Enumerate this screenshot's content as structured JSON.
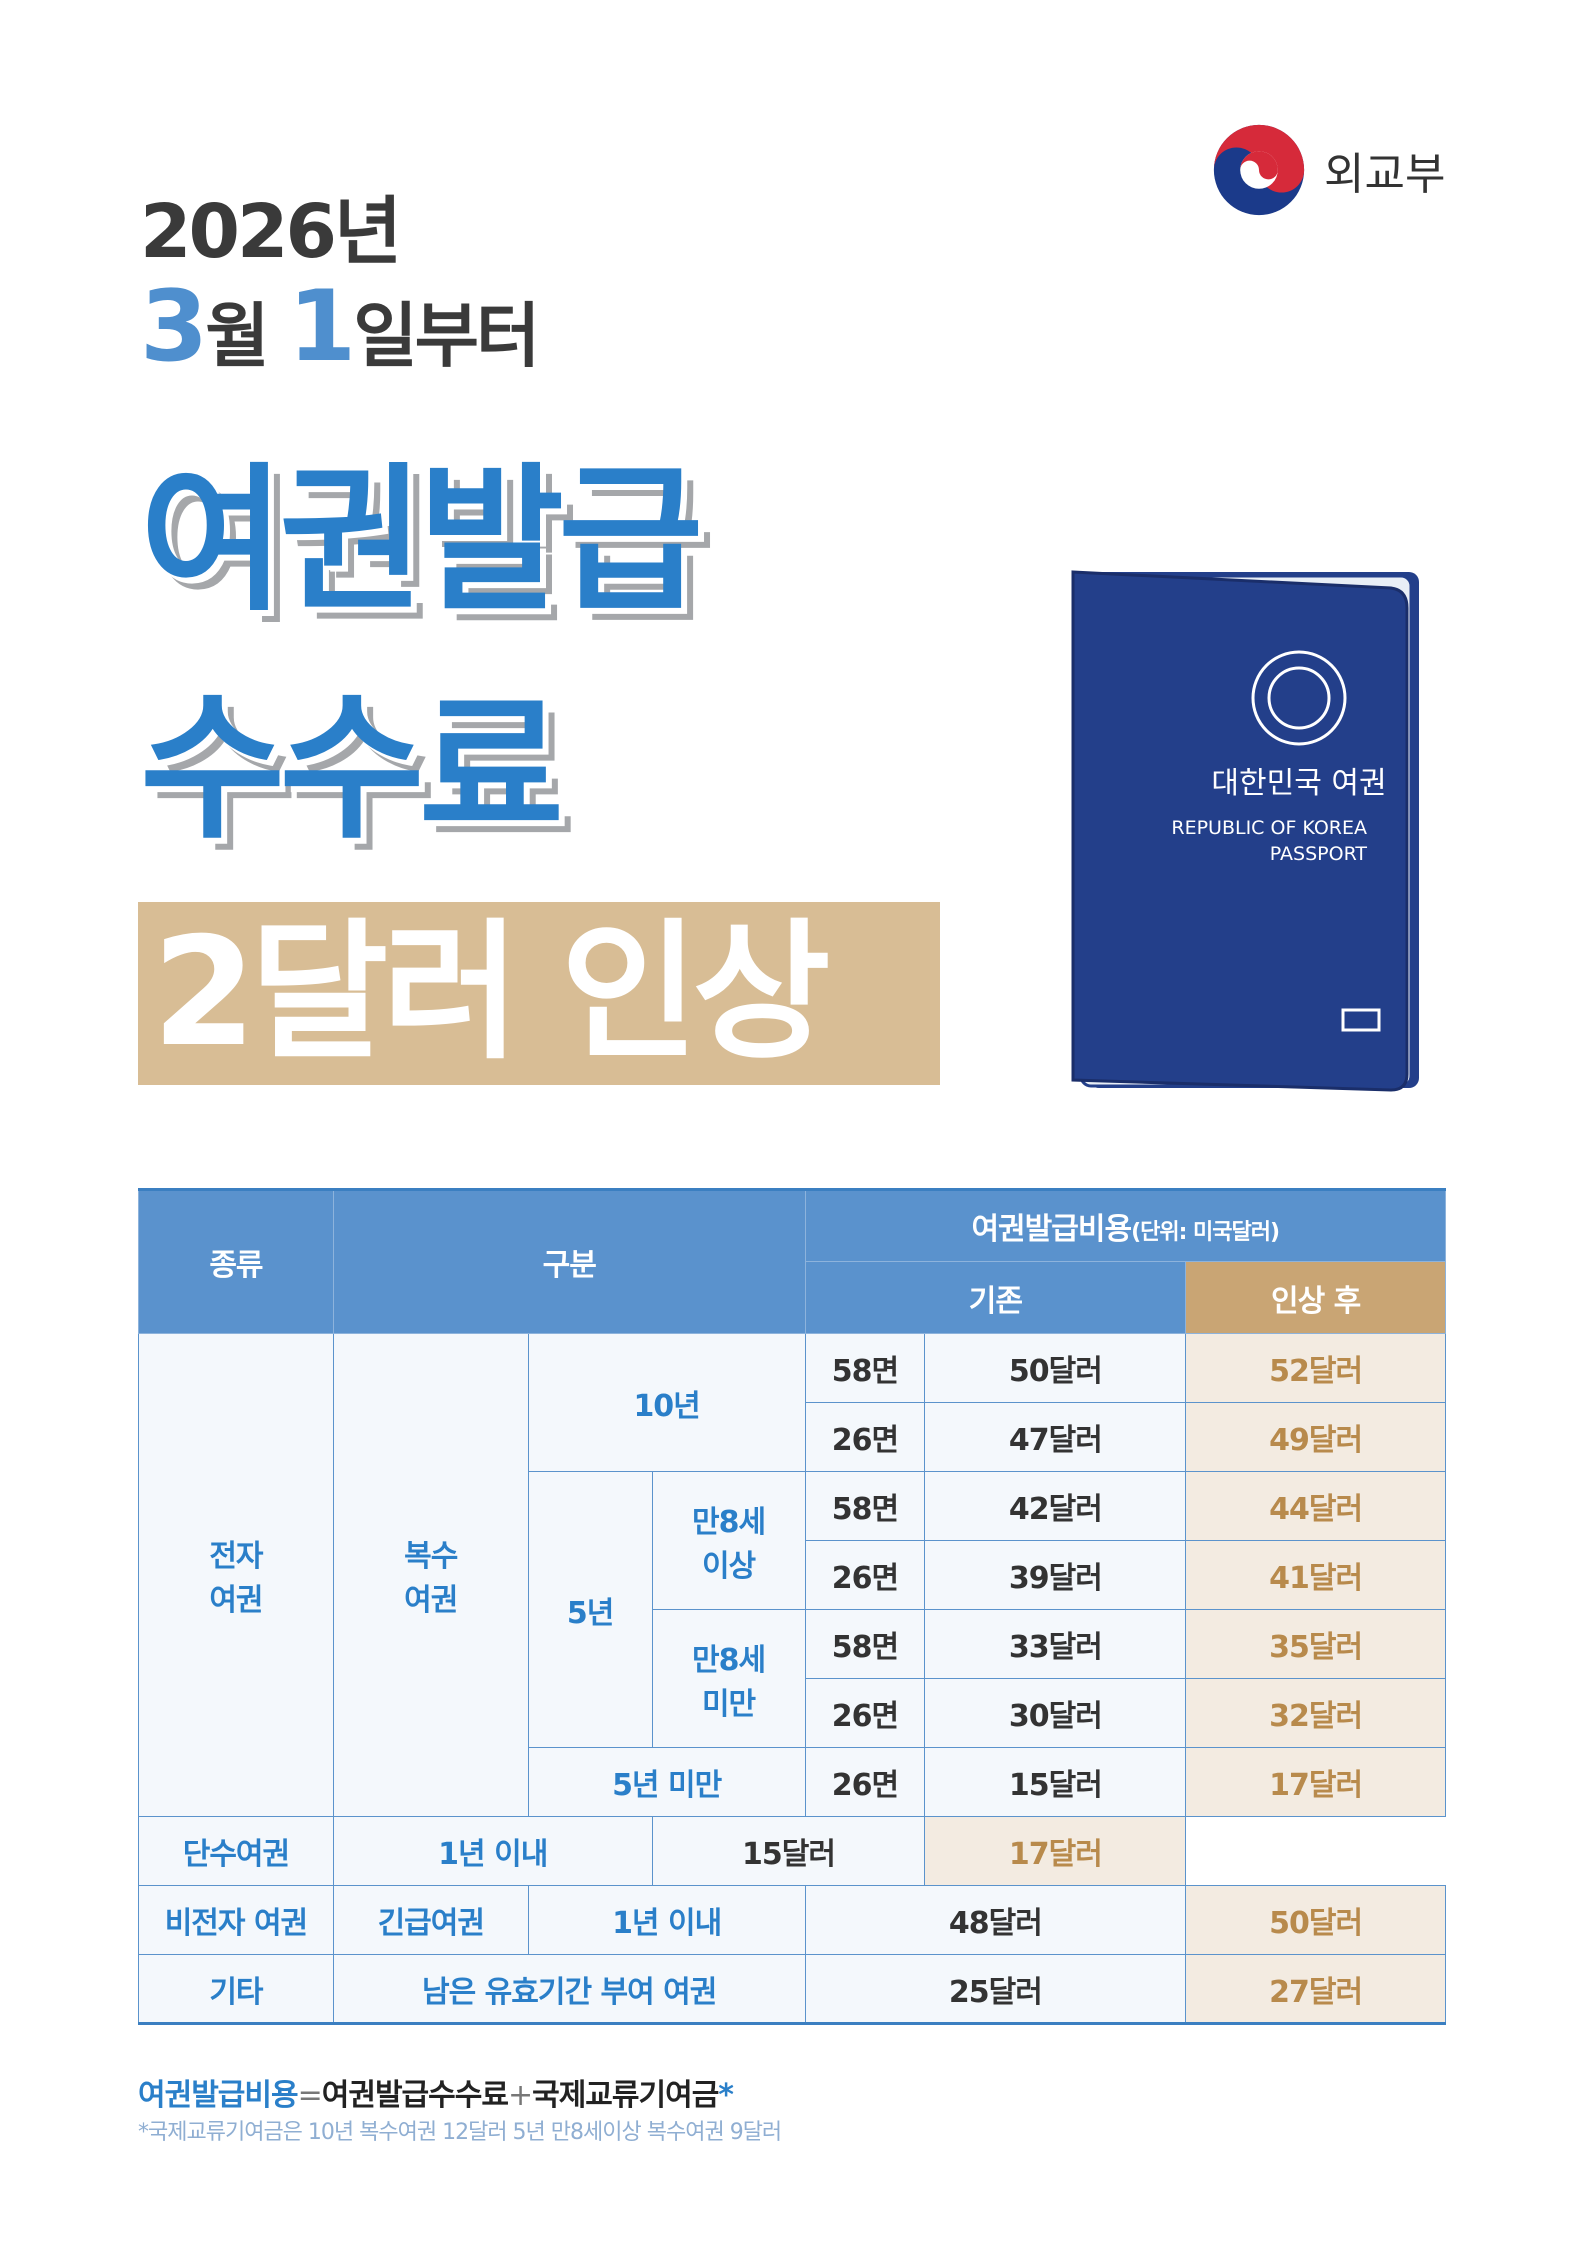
{
  "header": {
    "year": "2026년",
    "month_num": "3",
    "month_unit": "월",
    "day_num": "1",
    "day_rest": "일부터",
    "org": "외교부"
  },
  "headline": {
    "line1": "여권발급",
    "line2": "수수료",
    "band": "2달러 인상"
  },
  "passport": {
    "ko": "대한민국 여권",
    "en1": "REPUBLIC OF KOREA",
    "en2": "PASSPORT"
  },
  "table": {
    "h_type": "종류",
    "h_cat": "구분",
    "h_cost": "여권발급비용",
    "h_unit": "(단위: 미국달러)",
    "h_old": "기존",
    "h_new": "인상 후",
    "e_passport": "전자 여권",
    "multi": "복수 여권",
    "y10": "10년",
    "y5": "5년",
    "over8": "만8세 이상",
    "under8": "만8세 미만",
    "under5": "5년 미만",
    "single": "단수여권",
    "within1": "1년 이내",
    "non_e": "비전자 여권",
    "emergency": "긴급여권",
    "within1b": "1년 이내",
    "etc": "기타",
    "remaining": "남은 유효기간 부여 여권",
    "rows": [
      {
        "pages": "58면",
        "old": "50달러",
        "new": "52달러"
      },
      {
        "pages": "26면",
        "old": "47달러",
        "new": "49달러"
      },
      {
        "pages": "58면",
        "old": "42달러",
        "new": "44달러"
      },
      {
        "pages": "26면",
        "old": "39달러",
        "new": "41달러"
      },
      {
        "pages": "58면",
        "old": "33달러",
        "new": "35달러"
      },
      {
        "pages": "26면",
        "old": "30달러",
        "new": "32달러"
      },
      {
        "pages": "26면",
        "old": "15달러",
        "new": "17달러"
      },
      {
        "old": "15달러",
        "new": "17달러"
      },
      {
        "old": "48달러",
        "new": "50달러"
      },
      {
        "old": "25달러",
        "new": "27달러"
      }
    ]
  },
  "footer": {
    "a": "여권발급비용",
    "eq": "=",
    "b": "여권발급수수료",
    "plus": "+",
    "c": "국제교류기여금",
    "star": "*",
    "note": "*국제교류기여금은 10년 복수여권 12달러 5년 만8세이상 복수여권 9달러"
  },
  "colors": {
    "blue": "#2a7fc9",
    "header_blue": "#5a92cd",
    "tan": "#c9a574",
    "band": "#d8bd95",
    "passport": "#233f8a"
  }
}
